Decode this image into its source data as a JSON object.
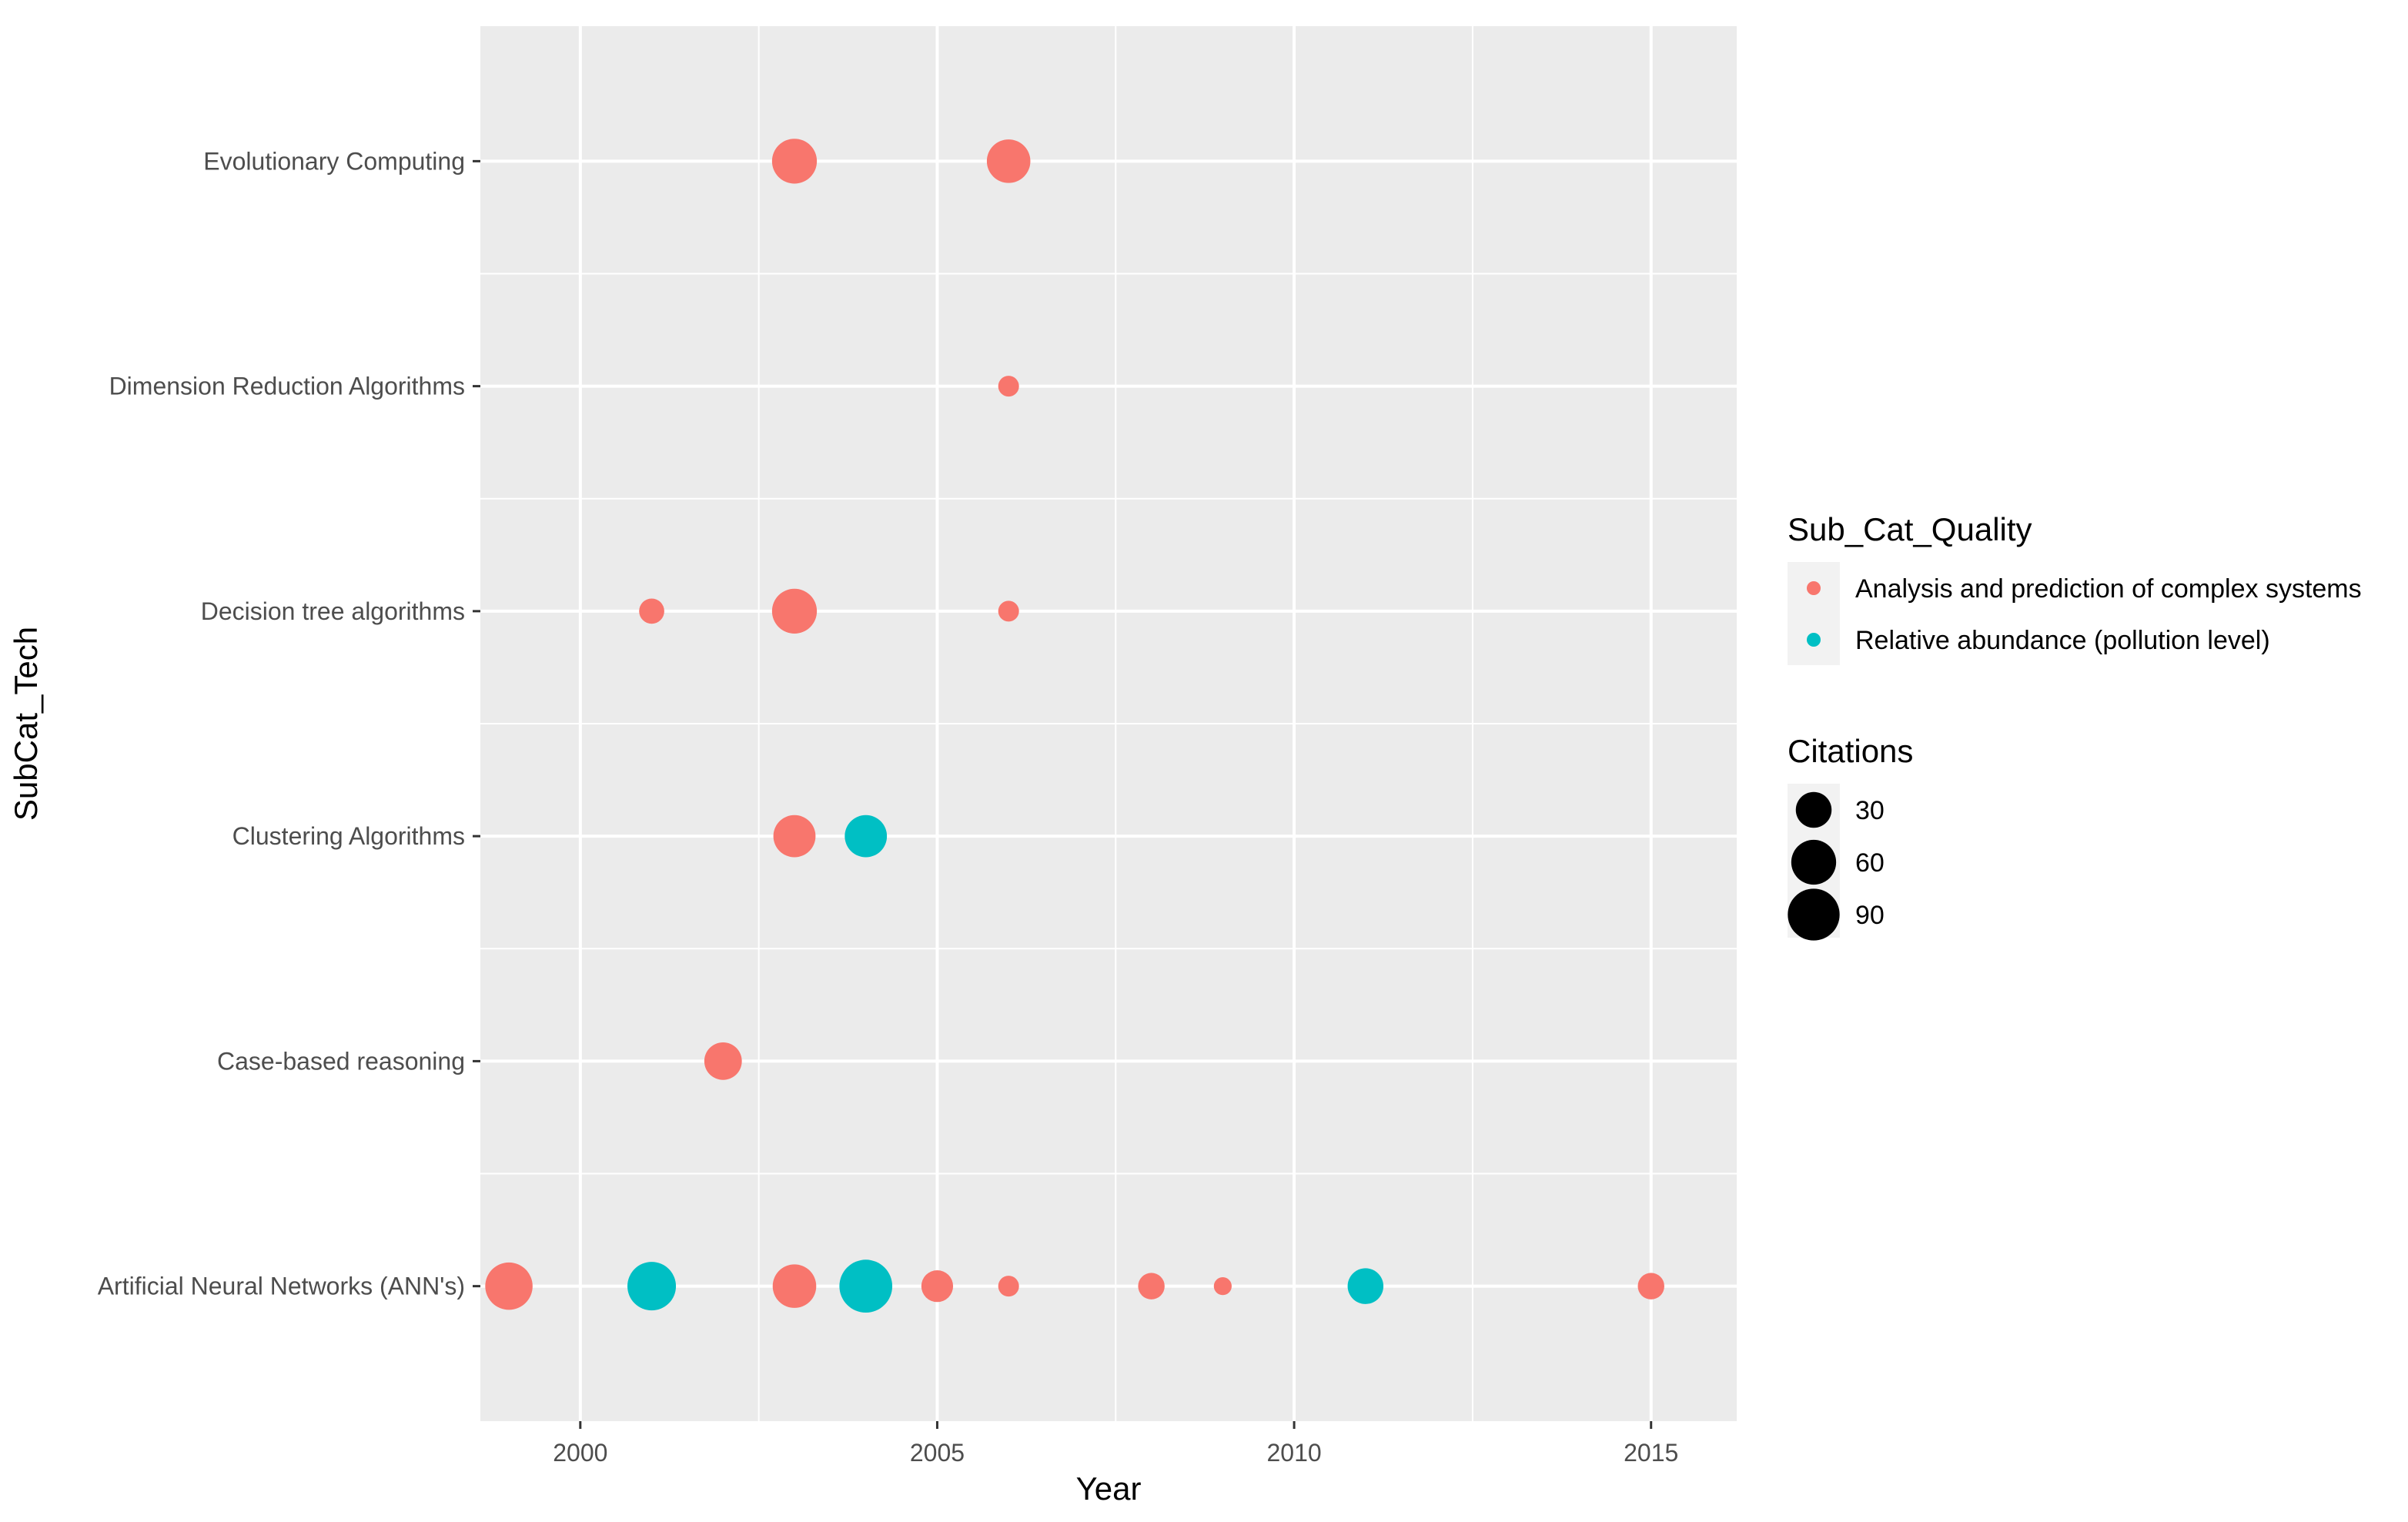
{
  "chart_data": {
    "type": "scatter",
    "title": "",
    "xlabel": "Year",
    "ylabel": "SubCat_Tech",
    "xlim": [
      1998.6,
      2016.2
    ],
    "x_ticks": [
      2000,
      2005,
      2010,
      2015
    ],
    "x_tick_labels": [
      "2000",
      "2005",
      "2010",
      "2015"
    ],
    "categories": [
      "Artificial Neural Networks (ANN's)",
      "Case-based reasoning",
      "Clustering Algorithms",
      "Decision tree algorithms",
      "Dimension Reduction Algorithms",
      "Evolutionary Computing"
    ],
    "grid": true,
    "legend_position": "right",
    "color_legend": {
      "title": "Sub_Cat_Quality",
      "entries": [
        {
          "label": "Analysis and prediction of complex systems",
          "color": "#F8766D"
        },
        {
          "label": "Relative abundance (pollution level)",
          "color": "#00BFC4"
        }
      ]
    },
    "size_legend": {
      "title": "Citations",
      "entries": [
        {
          "label": "30",
          "value": 30
        },
        {
          "label": "60",
          "value": 60
        },
        {
          "label": "90",
          "value": 90
        }
      ]
    },
    "series": [
      {
        "name": "Analysis and prediction of complex systems",
        "color": "#F8766D",
        "points": [
          {
            "x": 2003,
            "y": "Evolutionary Computing",
            "citations": 60
          },
          {
            "x": 2006,
            "y": "Evolutionary Computing",
            "citations": 55
          },
          {
            "x": 2006,
            "y": "Dimension Reduction Algorithms",
            "citations": 3
          },
          {
            "x": 2001,
            "y": "Decision tree algorithms",
            "citations": 8
          },
          {
            "x": 2003,
            "y": "Decision tree algorithms",
            "citations": 60
          },
          {
            "x": 2006,
            "y": "Decision tree algorithms",
            "citations": 3
          },
          {
            "x": 2003,
            "y": "Clustering Algorithms",
            "citations": 50
          },
          {
            "x": 2002,
            "y": "Case-based reasoning",
            "citations": 35
          },
          {
            "x": 1999,
            "y": "Artificial Neural Networks (ANN's)",
            "citations": 70
          },
          {
            "x": 2003,
            "y": "Artificial Neural Networks (ANN's)",
            "citations": 55
          },
          {
            "x": 2005,
            "y": "Artificial Neural Networks (ANN's)",
            "citations": 20
          },
          {
            "x": 2006,
            "y": "Artificial Neural Networks (ANN's)",
            "citations": 3
          },
          {
            "x": 2008,
            "y": "Artificial Neural Networks (ANN's)",
            "citations": 10
          },
          {
            "x": 2009,
            "y": "Artificial Neural Networks (ANN's)",
            "citations": 1
          },
          {
            "x": 2015,
            "y": "Artificial Neural Networks (ANN's)",
            "citations": 10
          }
        ]
      },
      {
        "name": "Relative abundance (pollution level)",
        "color": "#00BFC4",
        "points": [
          {
            "x": 2004,
            "y": "Clustering Algorithms",
            "citations": 50
          },
          {
            "x": 2001,
            "y": "Artificial Neural Networks (ANN's)",
            "citations": 75
          },
          {
            "x": 2004,
            "y": "Artificial Neural Networks (ANN's)",
            "citations": 95
          },
          {
            "x": 2011,
            "y": "Artificial Neural Networks (ANN's)",
            "citations": 30
          }
        ]
      }
    ]
  }
}
